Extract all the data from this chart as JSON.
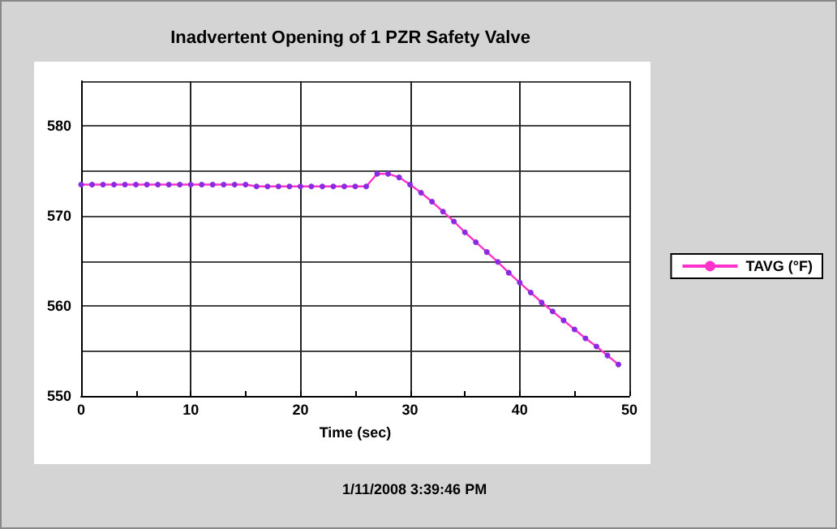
{
  "chart_data": {
    "type": "line",
    "title": "Inadvertent Opening of 1 PZR Safety Valve",
    "xlabel": "Time (sec)",
    "annotations": [
      "1/11/2008 3:39:46 PM"
    ],
    "x": [
      0,
      1,
      2,
      3,
      4,
      5,
      6,
      7,
      8,
      9,
      10,
      11,
      12,
      13,
      14,
      15,
      16,
      17,
      18,
      19,
      20,
      21,
      22,
      23,
      24,
      25,
      26,
      27,
      28,
      29,
      30,
      31,
      32,
      33,
      34,
      35,
      36,
      37,
      38,
      39,
      40,
      41,
      42,
      43,
      44,
      45,
      46,
      47,
      48,
      49
    ],
    "series": [
      {
        "name": "TAVG (°F)",
        "color": "#ff33cc",
        "values": [
          573.5,
          573.5,
          573.5,
          573.5,
          573.5,
          573.5,
          573.5,
          573.5,
          573.5,
          573.5,
          573.5,
          573.5,
          573.5,
          573.5,
          573.5,
          573.5,
          573.3,
          573.3,
          573.3,
          573.3,
          573.3,
          573.3,
          573.3,
          573.3,
          573.3,
          573.3,
          573.3,
          574.7,
          574.7,
          574.3,
          573.5,
          572.6,
          571.6,
          570.5,
          569.4,
          568.2,
          567.1,
          566.0,
          564.9,
          563.7,
          562.6,
          561.5,
          560.4,
          559.4,
          558.4,
          557.4,
          556.4,
          555.5,
          554.5,
          553.5
        ]
      }
    ],
    "xlim": [
      0,
      50
    ],
    "xticks": [
      0,
      {
        "value": 5,
        "label": null
      },
      10,
      {
        "value": 15,
        "label": null
      },
      20,
      {
        "value": 25,
        "label": null
      },
      30,
      {
        "value": 35,
        "label": null
      },
      40,
      {
        "value": 45,
        "label": null
      },
      50
    ],
    "ylim": [
      550,
      585
    ],
    "yticks": [
      550,
      {
        "value": 555,
        "label": null
      },
      560,
      {
        "value": 565,
        "label": null
      },
      570,
      {
        "value": 575,
        "label": null
      },
      580,
      {
        "value": 585,
        "label": null
      }
    ],
    "grid": true,
    "legend": "right",
    "marker": "circle",
    "line_style": "solid"
  }
}
